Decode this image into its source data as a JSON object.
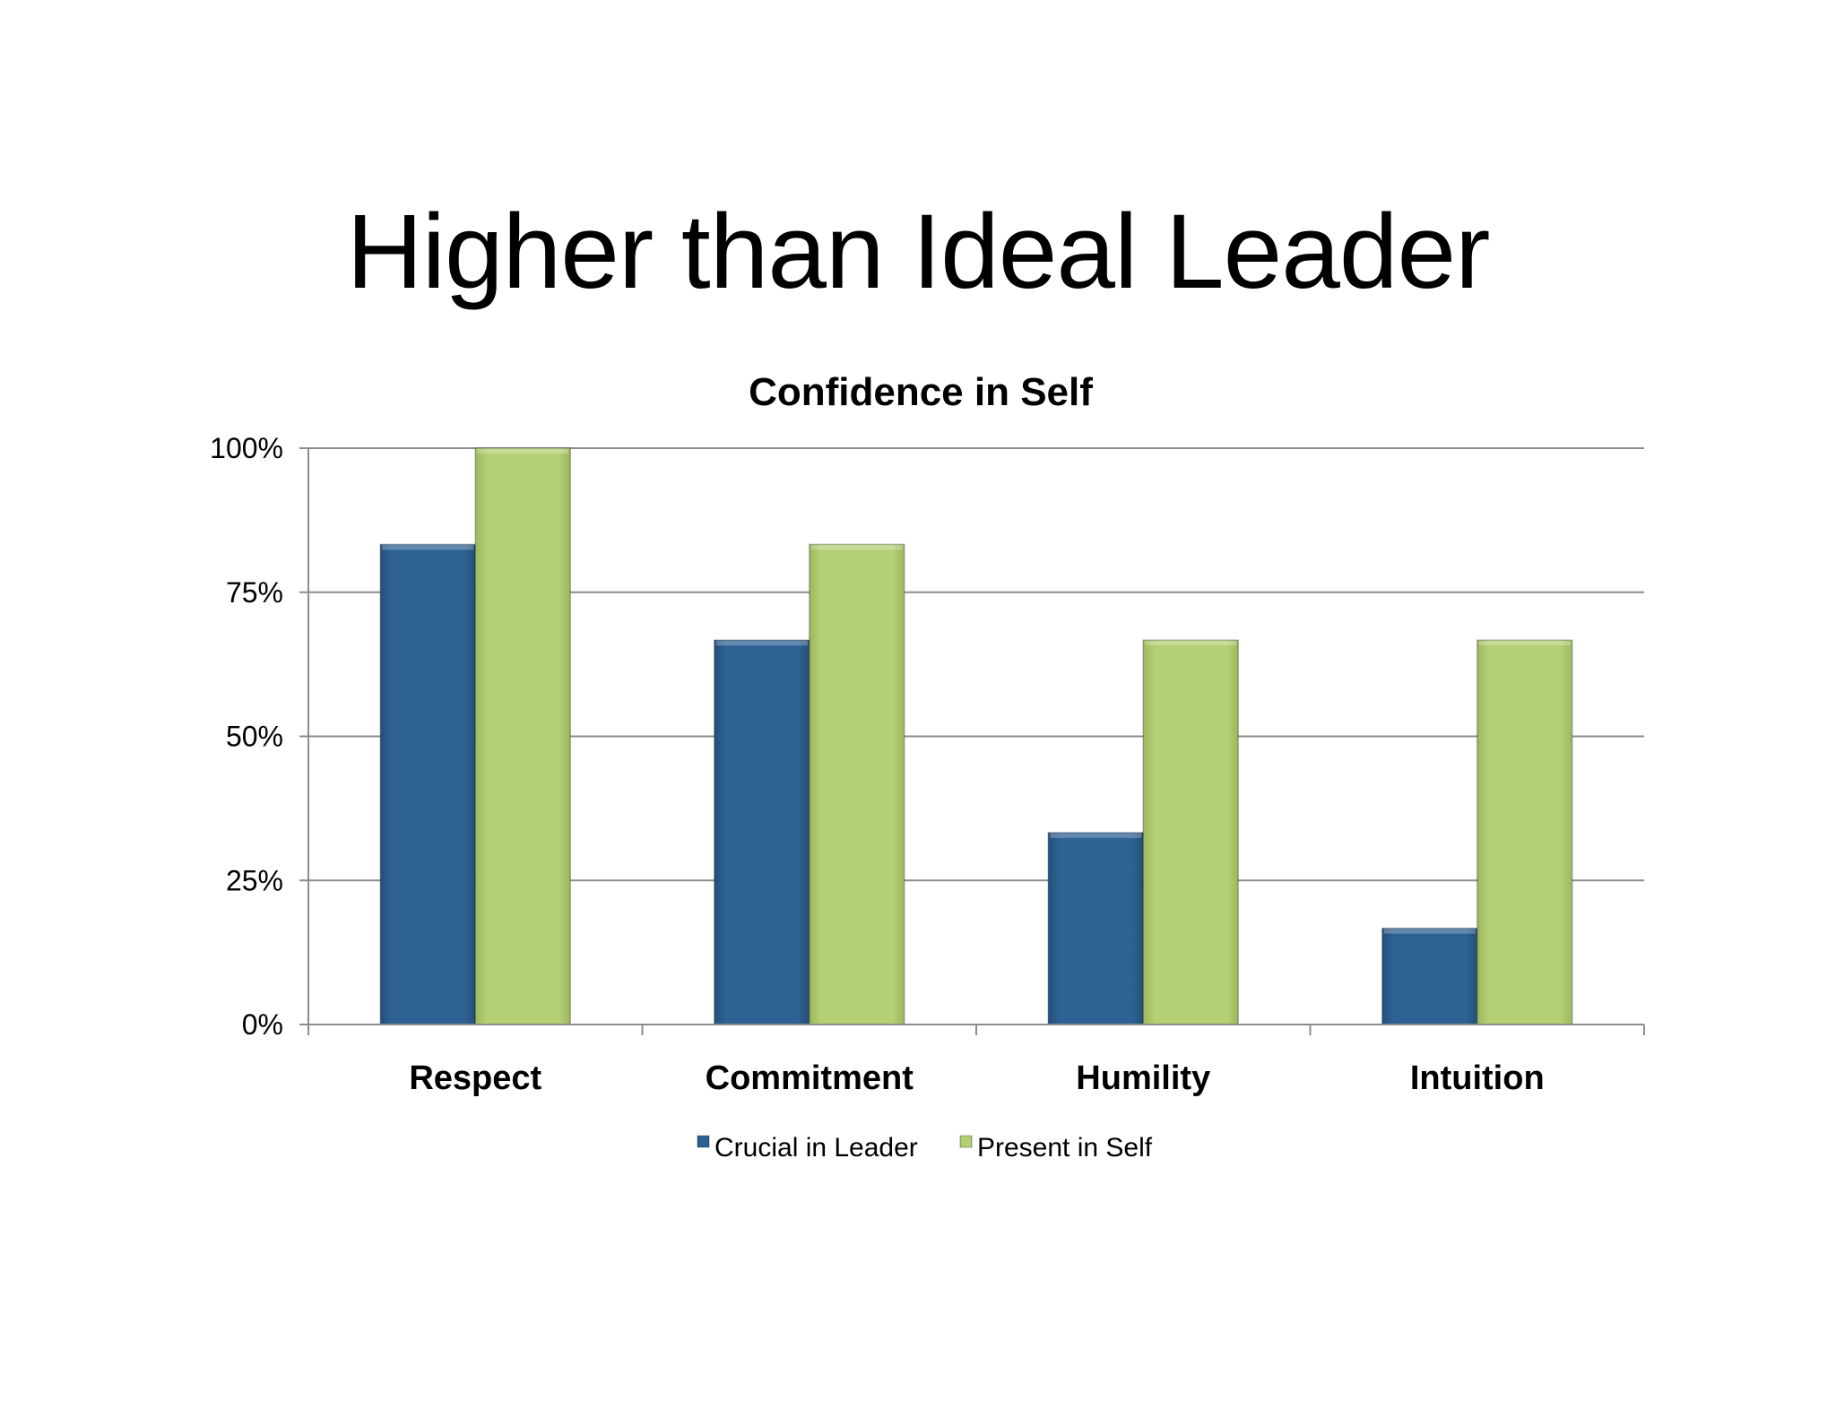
{
  "slide": {
    "title": "Higher than Ideal Leader"
  },
  "chart_data": {
    "type": "bar",
    "title": "Confidence in Self",
    "categories": [
      "Respect",
      "Commitment",
      "Humility",
      "Intuition"
    ],
    "series": [
      {
        "name": "Crucial in Leader",
        "values": [
          83.3,
          66.7,
          33.3,
          16.7
        ],
        "color": "#2e6294"
      },
      {
        "name": "Present in Self",
        "values": [
          100,
          83.3,
          66.7,
          66.7
        ],
        "color": "#b5cf74"
      }
    ],
    "yticks": [
      {
        "value": 0,
        "label": "0%"
      },
      {
        "value": 25,
        "label": "25%"
      },
      {
        "value": 50,
        "label": "50%"
      },
      {
        "value": 75,
        "label": "75%"
      },
      {
        "value": 100,
        "label": "100%"
      }
    ],
    "ylim": [
      0,
      100
    ],
    "xlabel": "",
    "ylabel": "",
    "grid": true,
    "legend_position": "bottom"
  }
}
